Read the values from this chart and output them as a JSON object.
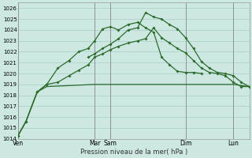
{
  "background_color": "#cce8e0",
  "grid_color": "#aacccc",
  "line_color": "#2d6b2d",
  "x_ticks_labels": [
    "Ven",
    "Mar",
    "Sam",
    "Dim",
    "Lun"
  ],
  "x_ticks_pos": [
    0,
    4.8,
    5.8,
    10.5,
    13.5
  ],
  "xlabel": "Pression niveau de la mer( hPa )",
  "xlim": [
    0,
    14.5
  ],
  "ylim": [
    1014,
    1026.5
  ],
  "ytick_min": 1014,
  "ytick_max": 1026,
  "vlines": [
    0,
    4.8,
    5.8,
    10.5,
    13.5
  ],
  "series_flat": {
    "x": [
      0,
      0.5,
      1.2,
      1.8,
      4.8,
      5.8,
      10.5,
      13.5,
      14.5
    ],
    "y": [
      1014.3,
      1015.6,
      1018.3,
      1018.8,
      1019.0,
      1019.0,
      1019.0,
      1019.0,
      1018.8
    ]
  },
  "series_mid": {
    "x": [
      0,
      0.5,
      1.2,
      1.8,
      2.5,
      3.2,
      3.8,
      4.4,
      4.8,
      5.3,
      5.8,
      6.3,
      6.9,
      7.5,
      8.0,
      8.5,
      9.0,
      9.5,
      10.0,
      10.5,
      11.0,
      11.5
    ],
    "y": [
      1014.3,
      1015.6,
      1018.3,
      1019.0,
      1020.5,
      1021.2,
      1022.0,
      1022.3,
      1023.0,
      1024.1,
      1024.3,
      1024.0,
      1024.5,
      1024.7,
      1024.2,
      1023.8,
      1021.5,
      1020.8,
      1020.2,
      1020.1,
      1020.1,
      1020.0
    ]
  },
  "series_main": {
    "x": [
      0,
      0.5,
      1.2,
      1.8,
      2.5,
      3.2,
      3.8,
      4.4,
      4.8,
      5.3,
      5.8,
      6.3,
      6.9,
      7.5,
      8.0,
      8.5,
      9.0,
      9.5,
      10.0,
      10.5,
      11.0,
      11.5,
      12.0,
      12.5,
      13.0,
      13.5,
      14.0,
      14.5
    ],
    "y": [
      1014.3,
      1015.6,
      1018.3,
      1019.0,
      1019.2,
      1019.8,
      1020.3,
      1020.8,
      1021.5,
      1021.8,
      1022.2,
      1022.5,
      1022.8,
      1023.0,
      1023.2,
      1024.2,
      1023.3,
      1022.8,
      1022.3,
      1021.9,
      1021.2,
      1020.5,
      1020.1,
      1020.0,
      1019.8,
      1019.2,
      1018.8,
      1018.8
    ]
  },
  "series_top": {
    "x": [
      4.4,
      4.8,
      5.3,
      5.8,
      6.3,
      6.9,
      7.5,
      8.0,
      8.5,
      9.0,
      9.5,
      10.0,
      10.5,
      11.0,
      11.5,
      12.0,
      12.5,
      13.0,
      13.5,
      14.0,
      14.5
    ],
    "y": [
      1021.5,
      1021.8,
      1022.3,
      1022.7,
      1023.2,
      1024.0,
      1024.2,
      1025.6,
      1025.2,
      1025.0,
      1024.5,
      1024.1,
      1023.3,
      1022.3,
      1021.1,
      1020.5,
      1020.1,
      1020.0,
      1019.8,
      1019.2,
      1018.8
    ]
  }
}
